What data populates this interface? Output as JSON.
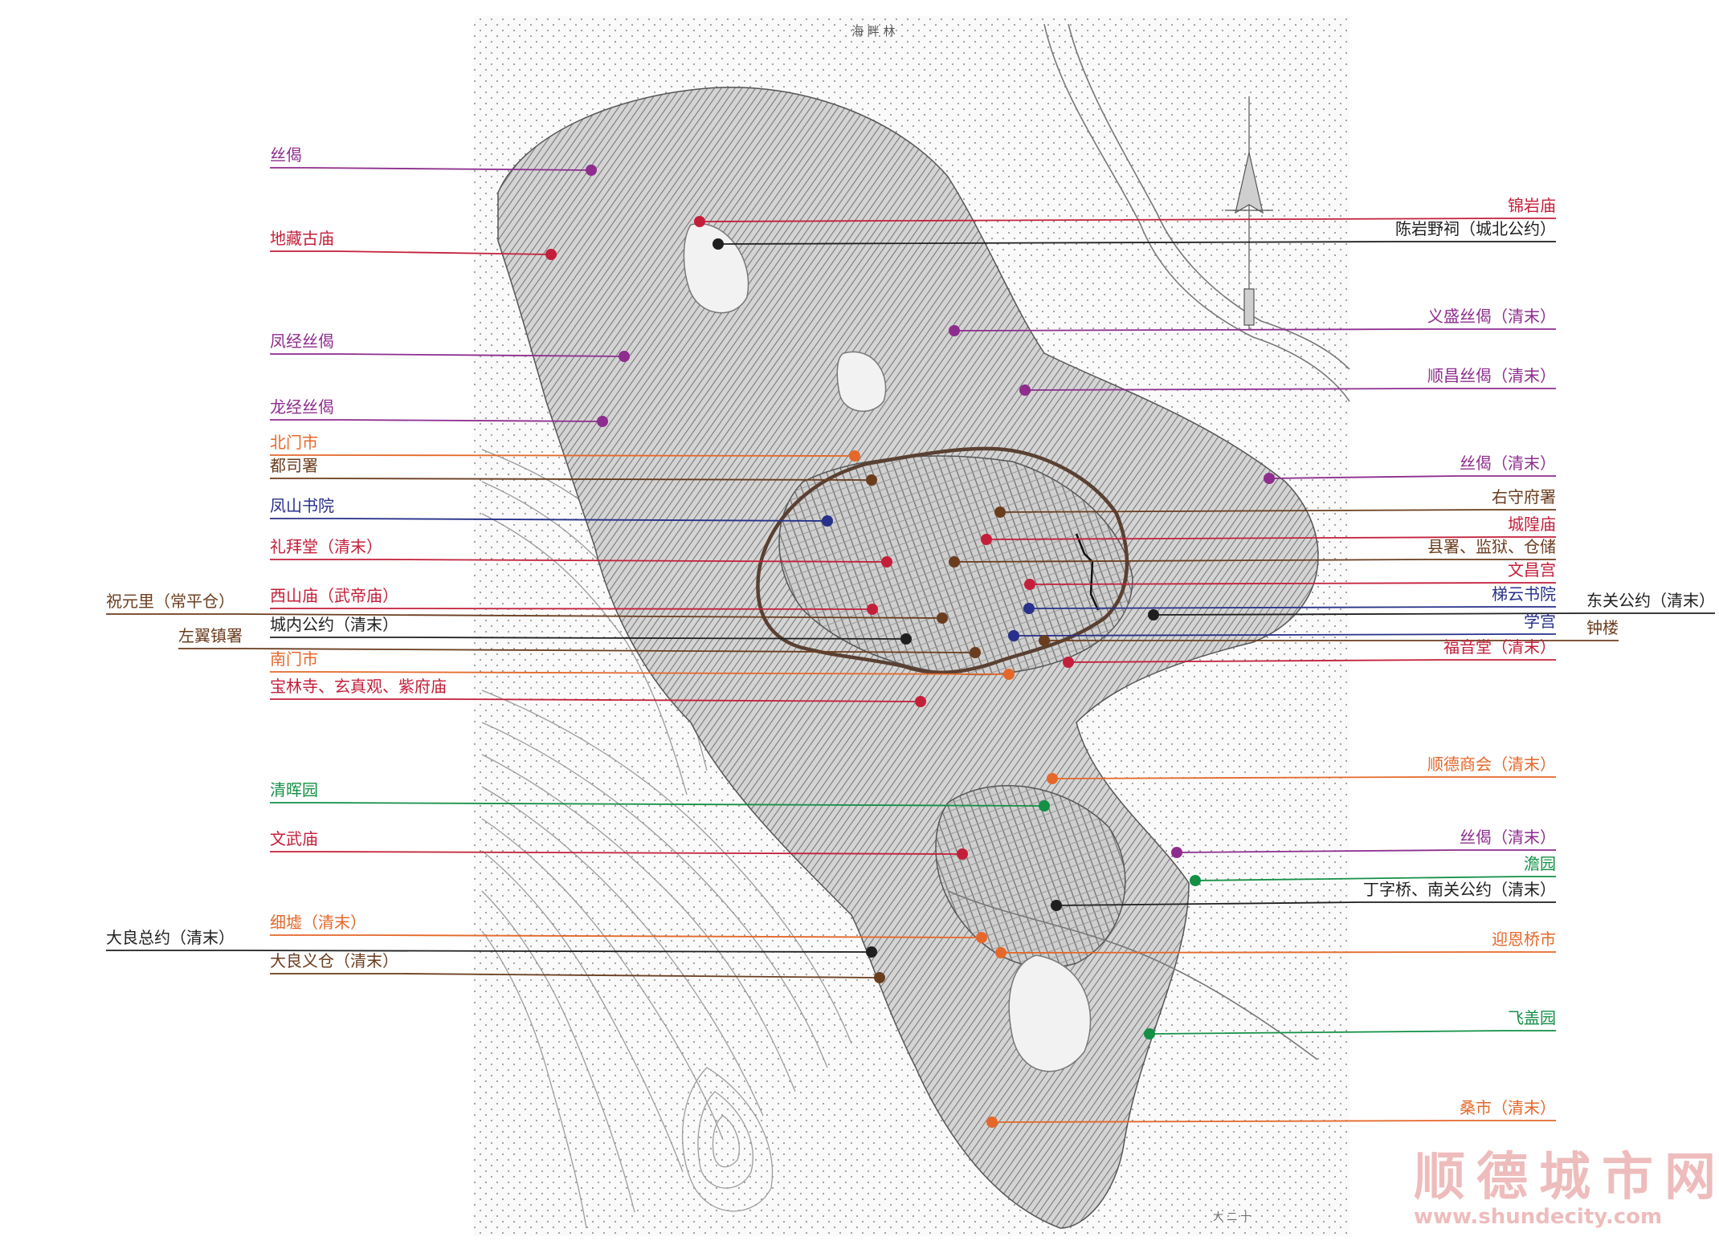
{
  "map": {
    "river_label": "海 畔 林",
    "scale_note": "大 二 十",
    "watermark": {
      "cn": "顺德城市网",
      "url": "www.shundecity.com"
    },
    "colors": {
      "silk": "#8e2d8e",
      "temple": "#c41f3a",
      "market": "#e5682a",
      "official": "#6b3d1f",
      "gongyue": "#1f1f1f",
      "academy": "#27308a",
      "garden": "#139045",
      "wall": "#5a4032"
    },
    "labels": [
      {
        "text": "丝偈",
        "color": "silk"
      },
      {
        "text": "锦岩庙",
        "color": "temple"
      },
      {
        "text": "陈岩野祠（城北公约）",
        "color": "gongyue"
      },
      {
        "text": "地藏古庙",
        "color": "temple"
      },
      {
        "text": "义盛丝偈（清末）",
        "color": "silk"
      },
      {
        "text": "凤经丝偈",
        "color": "silk"
      },
      {
        "text": "顺昌丝偈（清末）",
        "color": "silk"
      },
      {
        "text": "龙经丝偈",
        "color": "silk"
      },
      {
        "text": "北门市",
        "color": "market"
      },
      {
        "text": "都司署",
        "color": "official"
      },
      {
        "text": "丝偈（清末）",
        "color": "silk"
      },
      {
        "text": "凤山书院",
        "color": "academy"
      },
      {
        "text": "右守府署",
        "color": "official"
      },
      {
        "text": "城隍庙",
        "color": "temple"
      },
      {
        "text": "礼拜堂（清末）",
        "color": "temple"
      },
      {
        "text": "县署、监狱、仓储",
        "color": "official"
      },
      {
        "text": "文昌宫",
        "color": "temple"
      },
      {
        "text": "祝元里（常平仓）",
        "color": "official"
      },
      {
        "text": "西山庙（武帝庙）",
        "color": "temple"
      },
      {
        "text": "梯云书院",
        "color": "academy"
      },
      {
        "text": "东关公约（清末）",
        "color": "gongyue"
      },
      {
        "text": "城内公约（清末）",
        "color": "gongyue"
      },
      {
        "text": "学宫",
        "color": "academy"
      },
      {
        "text": "左翼镇署",
        "color": "official"
      },
      {
        "text": "钟楼",
        "color": "official"
      },
      {
        "text": "福音堂（清末）",
        "color": "temple"
      },
      {
        "text": "南门市",
        "color": "market"
      },
      {
        "text": "宝林寺、玄真观、紫府庙",
        "color": "temple"
      },
      {
        "text": "顺德商会（清末）",
        "color": "market"
      },
      {
        "text": "清晖园",
        "color": "garden"
      },
      {
        "text": "文武庙",
        "color": "temple"
      },
      {
        "text": "丝偈（清末）",
        "color": "silk"
      },
      {
        "text": "澹园",
        "color": "garden"
      },
      {
        "text": "丁字桥、南关公约（清末）",
        "color": "gongyue"
      },
      {
        "text": "细墟（清末）",
        "color": "market"
      },
      {
        "text": "大良总约（清末）",
        "color": "gongyue"
      },
      {
        "text": "迎恩桥市",
        "color": "market"
      },
      {
        "text": "大良义仓（清末）",
        "color": "official"
      },
      {
        "text": "飞盖园",
        "color": "garden"
      },
      {
        "text": "桑市（清末）",
        "color": "market"
      }
    ]
  }
}
